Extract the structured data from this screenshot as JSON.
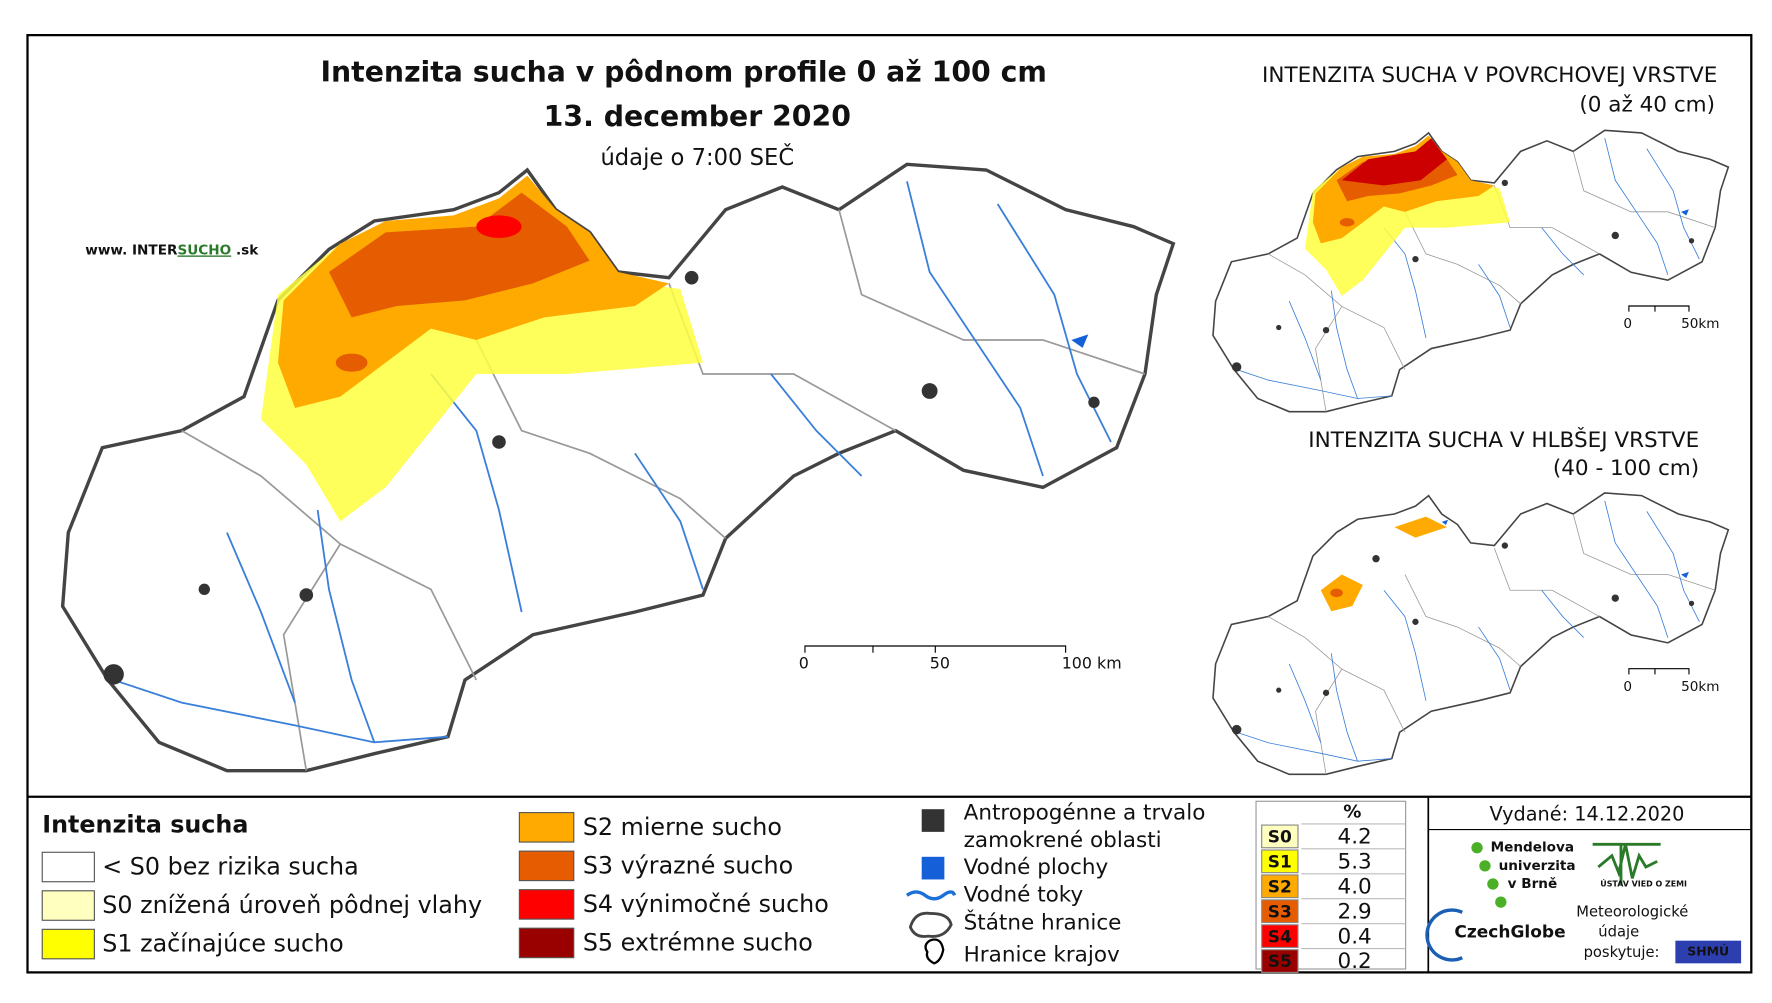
{
  "header": {
    "title": "Intenzita sucha v pôdnom profile 0 až 100 cm",
    "date": "13. december 2020",
    "note": "údaje o 7:00 SEČ",
    "website_prefix": "www. INTER",
    "website_brand": "SUCHO",
    "website_suffix": " .sk"
  },
  "main_map": {
    "scale_labels": [
      "0",
      "50",
      "100 km"
    ]
  },
  "insets": [
    {
      "title": "INTENZITA SUCHA V POVRCHOVEJ VRSTVE",
      "subtitle": "(0 až 40 cm)",
      "scale_labels": [
        "0",
        "50km"
      ]
    },
    {
      "title": "INTENZITA SUCHA V HLBŠEJ VRSTVE",
      "subtitle": "(40 - 100 cm)",
      "scale_labels": [
        "0",
        "50km"
      ]
    }
  ],
  "legend": {
    "title": "Intenzita sucha",
    "classes": [
      {
        "label": "< S0 bez rizika sucha",
        "color": "#ffffff"
      },
      {
        "label": "S0 znížená úroveň pôdnej vlahy",
        "color": "#ffffc0"
      },
      {
        "label": "S1 začínajúce sucho",
        "color": "#ffff00"
      },
      {
        "label": "S2 mierne sucho",
        "color": "#ffaa00"
      },
      {
        "label": "S3 výrazné sucho",
        "color": "#e65c00"
      },
      {
        "label": "S4 výnimočné sucho",
        "color": "#ff0000"
      },
      {
        "label": "S5 extrémne sucho",
        "color": "#990000"
      }
    ],
    "other": [
      {
        "lines": [
          "Antropogénne a trvalo",
          "zamokrené oblasti"
        ]
      },
      {
        "lines": [
          "Vodné plochy"
        ]
      },
      {
        "lines": [
          "Vodné toky"
        ]
      },
      {
        "lines": [
          "Štátne hranice"
        ]
      },
      {
        "lines": [
          "Hranice krajov"
        ]
      }
    ]
  },
  "table": {
    "header": "%",
    "rows": [
      {
        "code": "S0",
        "percent": "4.2",
        "color": "#ffffc0"
      },
      {
        "code": "S1",
        "percent": "5.3",
        "color": "#ffff00"
      },
      {
        "code": "S2",
        "percent": "4.0",
        "color": "#ffaa00"
      },
      {
        "code": "S3",
        "percent": "2.9",
        "color": "#e65c00"
      },
      {
        "code": "S4",
        "percent": "0.4",
        "color": "#ff0000"
      },
      {
        "code": "S5",
        "percent": "0.2",
        "color": "#990000"
      }
    ]
  },
  "footer": {
    "issued": "Vydané: 14.12.2020",
    "mendel": [
      "Mendelova",
      "univerzita",
      "v Brně"
    ],
    "czechglobe": "CzechGlobe",
    "ustav": "ÚSTAV VIED O ZEMI",
    "meteo": [
      "Meteorologické",
      "údaje",
      "poskytuje:"
    ],
    "shmu": "SHMÚ"
  }
}
